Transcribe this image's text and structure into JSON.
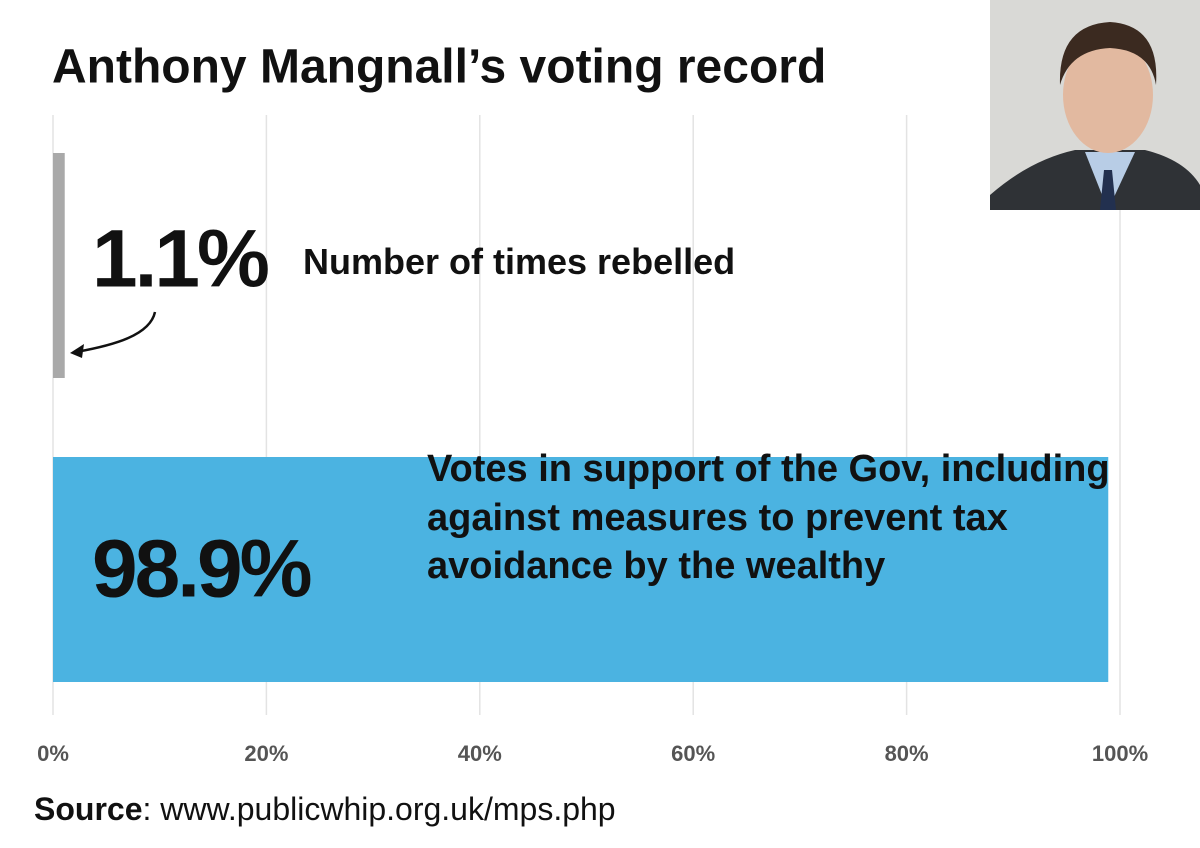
{
  "chart_data": {
    "type": "hbar",
    "title": "Anthony Mangnall’s voting record",
    "categories": [
      "Number of times rebelled",
      "Votes in support of the Gov, including against measures to prevent tax avoidance by the wealthy"
    ],
    "emphasis": "against",
    "values": [
      1.1,
      98.9
    ],
    "value_labels": [
      "1.1%",
      "98.9%"
    ],
    "colors": [
      "#a9a9a9",
      "#4bb3e1"
    ],
    "xlim": [
      0,
      100
    ],
    "xticks": [
      {
        "value": 0,
        "label": "0%"
      },
      {
        "value": 20,
        "label": "20%"
      },
      {
        "value": 40,
        "label": "40%"
      },
      {
        "value": 60,
        "label": "60%"
      },
      {
        "value": 80,
        "label": "80%"
      },
      {
        "value": 100,
        "label": "100%"
      }
    ],
    "grid": true,
    "source_label": "Source",
    "source_text": ": www.publicwhip.org.uk/mps.php"
  }
}
